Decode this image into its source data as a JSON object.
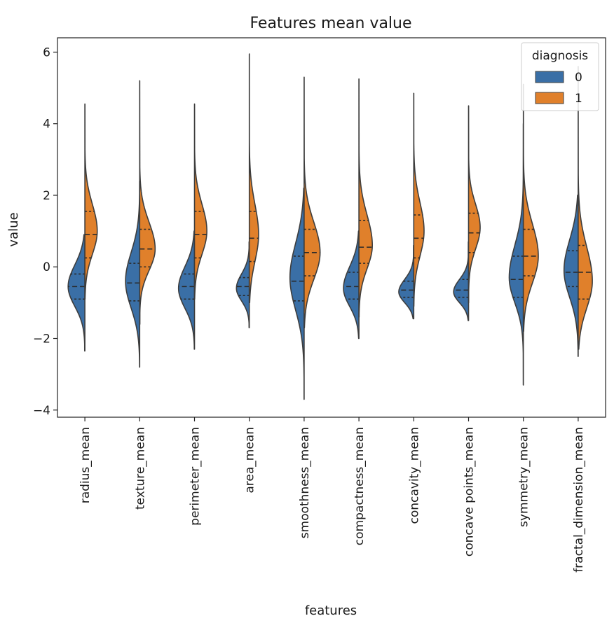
{
  "chart_data": {
    "type": "violin",
    "split": true,
    "inner": "quartile",
    "title": "Features mean value",
    "xlabel": "features",
    "ylabel": "value",
    "ylim": [
      -4.2,
      6.4
    ],
    "yticks": [
      6,
      4,
      2,
      0,
      -2,
      -4
    ],
    "ytick_labels": [
      "6",
      "4",
      "2",
      "0",
      "−2",
      "−4"
    ],
    "grid": false,
    "legend": {
      "title": "diagnosis",
      "placement": "top-right",
      "entries": [
        {
          "label": "0",
          "color": "#3a6fa6"
        },
        {
          "label": "1",
          "color": "#e0802b"
        }
      ]
    },
    "categories": [
      "radius_mean",
      "texture_mean",
      "perimeter_mean",
      "area_mean",
      "smoothness_mean",
      "compactness_mean",
      "concavity_mean",
      "concave points_mean",
      "symmetry_mean",
      "fractal_dimension_mean"
    ],
    "series": [
      {
        "name": "0",
        "color": "#3a6fa6",
        "side": "left",
        "violins": [
          {
            "min": -2.35,
            "max": 0.9,
            "q1": -0.9,
            "median": -0.55,
            "q3": -0.2,
            "peak": -0.55,
            "width": 0.65,
            "spread_down": 0.55,
            "spread_up": 0.6
          },
          {
            "min": -2.8,
            "max": 2.4,
            "q1": -0.95,
            "median": -0.45,
            "q3": 0.1,
            "peak": -0.4,
            "width": 0.55,
            "spread_down": 0.75,
            "spread_up": 0.8
          },
          {
            "min": -2.3,
            "max": 1.0,
            "q1": -0.9,
            "median": -0.55,
            "q3": -0.2,
            "peak": -0.6,
            "width": 0.62,
            "spread_down": 0.55,
            "spread_up": 0.6
          },
          {
            "min": -1.7,
            "max": 0.7,
            "q1": -0.8,
            "median": -0.55,
            "q3": -0.3,
            "peak": -0.6,
            "width": 0.5,
            "spread_down": 0.35,
            "spread_up": 0.4
          },
          {
            "min": -3.7,
            "max": 2.2,
            "q1": -0.95,
            "median": -0.4,
            "q3": 0.3,
            "peak": -0.3,
            "width": 0.55,
            "spread_down": 0.9,
            "spread_up": 0.95
          },
          {
            "min": -2.0,
            "max": 1.0,
            "q1": -0.9,
            "median": -0.55,
            "q3": -0.15,
            "peak": -0.6,
            "width": 0.6,
            "spread_down": 0.5,
            "spread_up": 0.6
          },
          {
            "min": -1.45,
            "max": 0.6,
            "q1": -0.85,
            "median": -0.65,
            "q3": -0.4,
            "peak": -0.7,
            "width": 0.58,
            "spread_down": 0.3,
            "spread_up": 0.35
          },
          {
            "min": -1.5,
            "max": 0.7,
            "q1": -0.85,
            "median": -0.65,
            "q3": -0.35,
            "peak": -0.7,
            "width": 0.58,
            "spread_down": 0.3,
            "spread_up": 0.35
          },
          {
            "min": -3.3,
            "max": 4.0,
            "q1": -0.85,
            "median": -0.35,
            "q3": 0.3,
            "peak": -0.3,
            "width": 0.55,
            "spread_down": 0.7,
            "spread_up": 0.9
          },
          {
            "min": -2.5,
            "max": 2.0,
            "q1": -0.55,
            "median": -0.15,
            "q3": 0.45,
            "peak": -0.1,
            "width": 0.55,
            "spread_down": 0.75,
            "spread_up": 0.85
          }
        ]
      },
      {
        "name": "1",
        "color": "#e0802b",
        "side": "right",
        "violins": [
          {
            "min": -0.9,
            "max": 4.55,
            "q1": 0.25,
            "median": 0.9,
            "q3": 1.55,
            "peak": 1.0,
            "width": 0.48,
            "spread_down": 0.65,
            "spread_up": 0.75
          },
          {
            "min": -1.6,
            "max": 5.2,
            "q1": 0.0,
            "median": 0.5,
            "q3": 1.05,
            "peak": 0.5,
            "width": 0.6,
            "spread_down": 0.6,
            "spread_up": 0.75
          },
          {
            "min": -0.9,
            "max": 4.55,
            "q1": 0.25,
            "median": 0.9,
            "q3": 1.55,
            "peak": 1.0,
            "width": 0.48,
            "spread_down": 0.65,
            "spread_up": 0.75
          },
          {
            "min": -1.0,
            "max": 5.95,
            "q1": 0.15,
            "median": 0.8,
            "q3": 1.55,
            "peak": 0.9,
            "width": 0.36,
            "spread_down": 0.75,
            "spread_up": 0.85
          },
          {
            "min": -1.7,
            "max": 5.3,
            "q1": -0.25,
            "median": 0.4,
            "q3": 1.05,
            "peak": 0.4,
            "width": 0.62,
            "spread_down": 0.75,
            "spread_up": 0.85
          },
          {
            "min": -1.4,
            "max": 5.25,
            "q1": 0.1,
            "median": 0.55,
            "q3": 1.3,
            "peak": 0.6,
            "width": 0.52,
            "spread_down": 0.65,
            "spread_up": 0.85
          },
          {
            "min": -1.1,
            "max": 4.85,
            "q1": 0.25,
            "median": 0.8,
            "q3": 1.45,
            "peak": 1.0,
            "width": 0.4,
            "spread_down": 0.7,
            "spread_up": 0.8
          },
          {
            "min": -1.0,
            "max": 4.5,
            "q1": 0.4,
            "median": 0.95,
            "q3": 1.5,
            "peak": 1.1,
            "width": 0.45,
            "spread_down": 0.6,
            "spread_up": 0.65
          },
          {
            "min": -1.8,
            "max": 5.1,
            "q1": -0.25,
            "median": 0.3,
            "q3": 1.05,
            "peak": 0.3,
            "width": 0.58,
            "spread_down": 0.75,
            "spread_up": 0.9
          },
          {
            "min": -2.3,
            "max": 5.6,
            "q1": -0.9,
            "median": -0.15,
            "q3": 0.6,
            "peak": -0.4,
            "width": 0.55,
            "spread_down": 0.75,
            "spread_up": 0.95
          }
        ]
      }
    ]
  }
}
